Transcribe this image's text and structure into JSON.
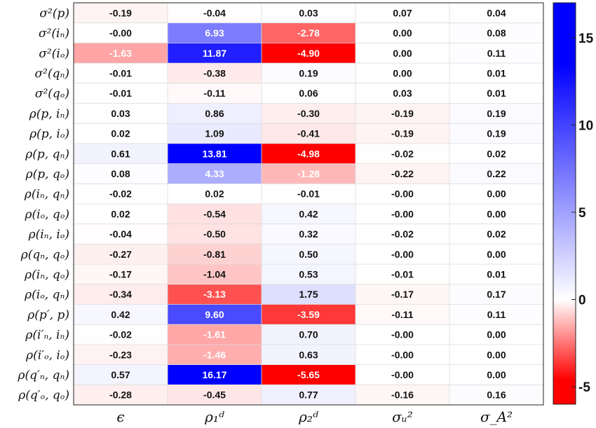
{
  "chart_data": {
    "type": "heatmap",
    "title": "",
    "xlabel": "",
    "ylabel": "",
    "rows": [
      "σ²(p)",
      "σ²(iₙ)",
      "σ²(iₒ)",
      "σ²(qₙ)",
      "σ²(qₒ)",
      "ρ(p, iₙ)",
      "ρ(p, iₒ)",
      "ρ(p, qₙ)",
      "ρ(p, qₒ)",
      "ρ(iₙ, qₙ)",
      "ρ(iₒ, qₒ)",
      "ρ(iₙ, iₒ)",
      "ρ(qₙ, qₒ)",
      "ρ(iₙ, qₒ)",
      "ρ(iₒ, qₙ)",
      "ρ(p′, p)",
      "ρ(i′ₙ, iₙ)",
      "ρ(i′ₒ, iₒ)",
      "ρ(q′ₙ, qₙ)",
      "ρ(q′ₒ, qₒ)"
    ],
    "columns": [
      "ϵ",
      "ρ₁ᵈ",
      "ρ₂ᵈ",
      "σᵤ²",
      "σ_A²"
    ],
    "values": [
      [
        "-0.19",
        "-0.04",
        "0.03",
        "0.07",
        "0.04"
      ],
      [
        "-0.00",
        "6.93",
        "-2.78",
        "0.00",
        "0.08"
      ],
      [
        "-1.63",
        "11.87",
        "-4.90",
        "0.00",
        "0.11"
      ],
      [
        "-0.01",
        "-0.38",
        "0.19",
        "0.00",
        "0.01"
      ],
      [
        "-0.01",
        "-0.11",
        "0.06",
        "0.03",
        "0.01"
      ],
      [
        "0.03",
        "0.86",
        "-0.30",
        "-0.19",
        "0.19"
      ],
      [
        "0.02",
        "1.09",
        "-0.41",
        "-0.19",
        "0.19"
      ],
      [
        "0.61",
        "13.81",
        "-4.98",
        "-0.02",
        "0.02"
      ],
      [
        "0.08",
        "4.33",
        "-1.28",
        "-0.22",
        "0.22"
      ],
      [
        "-0.02",
        "0.02",
        "-0.01",
        "-0.00",
        "0.00"
      ],
      [
        "0.02",
        "-0.54",
        "0.42",
        "-0.00",
        "0.00"
      ],
      [
        "-0.04",
        "-0.50",
        "0.32",
        "-0.02",
        "0.02"
      ],
      [
        "-0.27",
        "-0.81",
        "0.50",
        "-0.00",
        "0.00"
      ],
      [
        "-0.17",
        "-1.04",
        "0.53",
        "-0.01",
        "0.01"
      ],
      [
        "-0.34",
        "-3.13",
        "1.75",
        "-0.17",
        "0.17"
      ],
      [
        "0.42",
        "9.60",
        "-3.59",
        "-0.11",
        "0.11"
      ],
      [
        "-0.02",
        "-1.61",
        "0.70",
        "-0.00",
        "0.00"
      ],
      [
        "-0.23",
        "-1.46",
        "0.63",
        "-0.00",
        "0.00"
      ],
      [
        "0.57",
        "16.17",
        "-5.65",
        "-0.00",
        "0.00"
      ],
      [
        "-0.28",
        "-0.45",
        "0.77",
        "-0.16",
        "0.16"
      ]
    ],
    "colorbar": {
      "min": -6,
      "max": 17,
      "ticks": [
        {
          "value": -5,
          "label": "-5"
        },
        {
          "value": 0,
          "label": "0"
        },
        {
          "value": 5,
          "label": "5"
        },
        {
          "value": 10,
          "label": "10"
        },
        {
          "value": 15,
          "label": "15"
        }
      ],
      "colors": {
        "negative": "#ff0000",
        "zero": "#ffffff",
        "positive": "#0000ff"
      }
    },
    "legend_position": "right"
  }
}
